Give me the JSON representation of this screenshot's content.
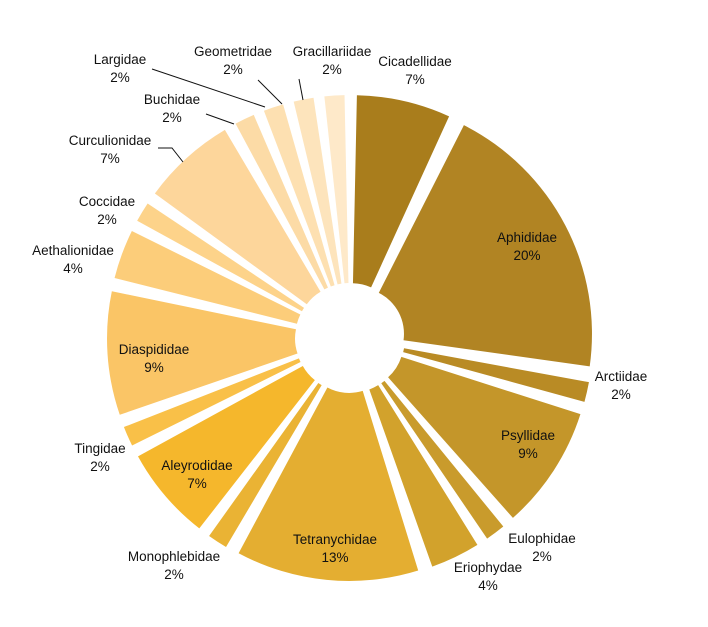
{
  "chart_data": {
    "type": "pie",
    "title": "",
    "start_angle_deg": 0,
    "direction": "clockwise",
    "exploded": true,
    "slices": [
      {
        "label": "Cicadellidae",
        "pct_label": "7%",
        "value": 7,
        "color": "#a97d1c"
      },
      {
        "label": "Aphididae",
        "pct_label": "20%",
        "value": 20,
        "color": "#b18423"
      },
      {
        "label": "Arctiidae",
        "pct_label": "2%",
        "value": 2,
        "color": "#b98b25"
      },
      {
        "label": "Psyllidae",
        "pct_label": "9%",
        "value": 9,
        "color": "#c4962a"
      },
      {
        "label": "Eulophidae",
        "pct_label": "2%",
        "value": 2,
        "color": "#c99b2c"
      },
      {
        "label": "Eriophydae",
        "pct_label": "4%",
        "value": 4,
        "color": "#d2a22c"
      },
      {
        "label": "Tetranychidae",
        "pct_label": "13%",
        "value": 13,
        "color": "#e4ae31"
      },
      {
        "label": "Monophlebidae",
        "pct_label": "2%",
        "value": 2,
        "color": "#eab334"
      },
      {
        "label": "Aleyrodidae",
        "pct_label": "7%",
        "value": 7,
        "color": "#f5b72c"
      },
      {
        "label": "Tingidae",
        "pct_label": "2%",
        "value": 2,
        "color": "#f9c048"
      },
      {
        "label": "Diaspididae",
        "pct_label": "9%",
        "value": 9,
        "color": "#fac566"
      },
      {
        "label": "Aethalionidae",
        "pct_label": "4%",
        "value": 4,
        "color": "#fccd7a"
      },
      {
        "label": "Coccidae",
        "pct_label": "2%",
        "value": 2,
        "color": "#fdd38a"
      },
      {
        "label": "Curculionidae",
        "pct_label": "7%",
        "value": 7,
        "color": "#fdd69b"
      },
      {
        "label": "Buchidae",
        "pct_label": "2%",
        "value": 2,
        "color": "#fcdba6"
      },
      {
        "label": "Largidae",
        "pct_label": "2%",
        "value": 2,
        "color": "#fde0b1"
      },
      {
        "label": "Geometridae",
        "pct_label": "2%",
        "value": 2,
        "color": "#fde4bc"
      },
      {
        "label": "Gracillariidae",
        "pct_label": "2%",
        "value": 2,
        "color": "#fee9c9"
      }
    ]
  }
}
